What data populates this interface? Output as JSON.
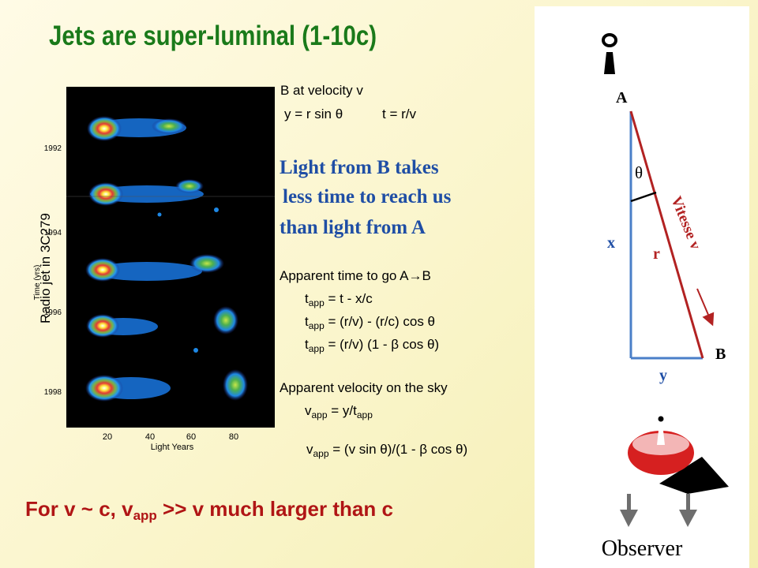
{
  "slide": {
    "title": "Jets are super-luminal (1-10c)",
    "side_label": "Radio jet  in 3C279"
  },
  "radio_figure": {
    "ylabel": "Time (yrs)",
    "xlabel": "Light Years",
    "year_ticks": [
      "1992",
      "1994",
      "1996",
      "1998"
    ],
    "x_ticks": [
      "20",
      "40",
      "60",
      "80"
    ],
    "background_color": "#000000"
  },
  "equations": {
    "line1": "B at velocity v",
    "line2a": "y = r sin θ",
    "line2b": "t = r/v",
    "apparent_time_heading": "Apparent time to go A→B",
    "t_sym": "t",
    "app_sub": "app",
    "tapp1_rhs": " = t - x/c",
    "tapp2_rhs": " = (r/v) - (r/c) cos θ",
    "tapp3_rhs": " = (r/v) (1 - β cos θ)",
    "apparent_velocity_heading": "Apparent velocity on the sky",
    "v_sym": "v",
    "vapp1_mid": " = y/t",
    "vapp2_rhs": " = (v sin θ)/(1 - β cos θ)"
  },
  "highlight": {
    "line1": "Light from B takes",
    "line2": "less time to reach us",
    "line3": "than light from  A",
    "color": "#1f4ea5"
  },
  "conclusion": {
    "part1": "For v ~ c, v",
    "sub": "app",
    "part2": " >> v   much larger than c",
    "color": "#b01515"
  },
  "diagram": {
    "label_A": "A",
    "label_B": "B",
    "label_x": "x",
    "label_y": "y",
    "label_r": "r",
    "label_theta": "θ",
    "label_vitesse": "Vitesse v",
    "label_observer": "Observer",
    "triangle_color": "#4a7fc8",
    "hypotenuse_color": "#b22222",
    "dish_color": "#d62020"
  }
}
